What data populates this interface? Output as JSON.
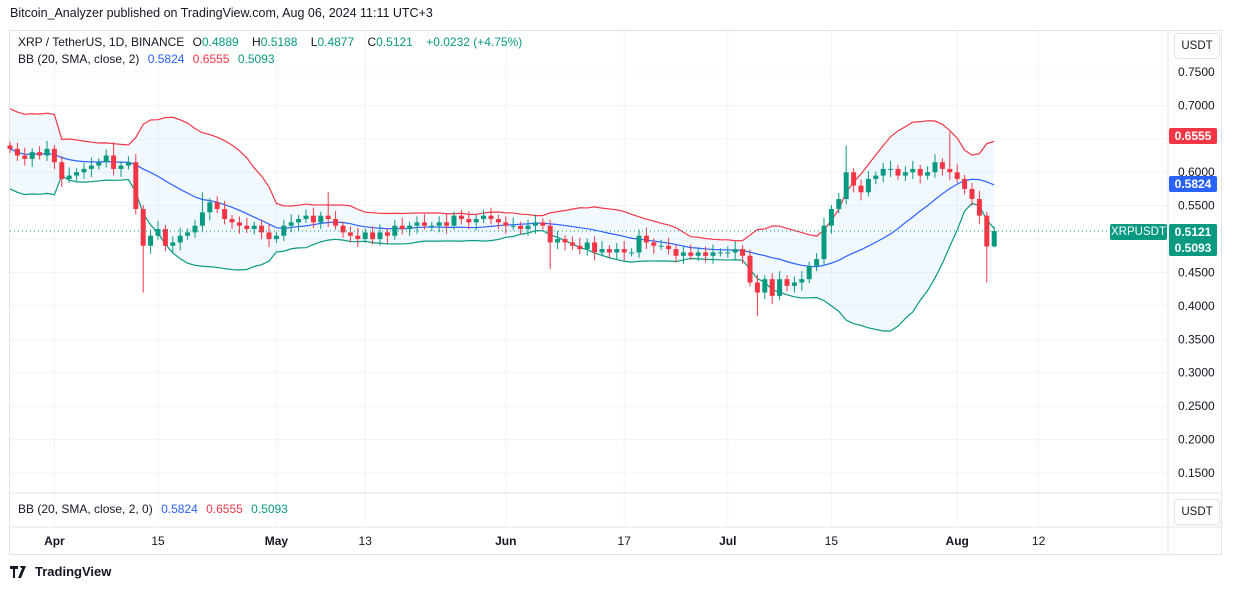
{
  "publish_line": "Bitcoin_Analyzer published on TradingView.com, Aug 06, 2024 11:11 UTC+3",
  "legend": {
    "symbol": "XRP / TetherUS, 1D, BINANCE",
    "o_label": "O",
    "o": "0.4889",
    "h_label": "H",
    "h": "0.5188",
    "l_label": "L",
    "l": "0.4877",
    "c_label": "C",
    "c": "0.5121",
    "change": "+0.0232 (+4.75%)",
    "bb_label": "BB (20, SMA, close, 2)",
    "bb_basis": "0.5824",
    "bb_upper": "0.6555",
    "bb_lower": "0.5093"
  },
  "indicator_pane": {
    "label": "BB (20, SMA, close, 2, 0)",
    "basis": "0.5824",
    "upper": "0.6555",
    "lower": "0.5093"
  },
  "price_axis": {
    "unit": "USDT",
    "ticks": [
      "0.7500",
      "0.7000",
      "0.6000",
      "0.5500",
      "0.4500",
      "0.4000",
      "0.3500",
      "0.3000",
      "0.2500",
      "0.2000",
      "0.1500"
    ]
  },
  "price_tags": {
    "upper": "0.6555",
    "basis": "0.5824",
    "last": "0.5121",
    "lower": "0.5093",
    "symbol": "XRPUSDT"
  },
  "indicator_unit": "USDT",
  "time_axis": {
    "ticks": [
      {
        "label": "Apr",
        "date": "2024-04-01",
        "bold": true
      },
      {
        "label": "15",
        "date": "2024-04-15"
      },
      {
        "label": "May",
        "date": "2024-05-01",
        "bold": true
      },
      {
        "label": "13",
        "date": "2024-05-13"
      },
      {
        "label": "Jun",
        "date": "2024-06-01",
        "bold": true
      },
      {
        "label": "17",
        "date": "2024-06-17"
      },
      {
        "label": "Jul",
        "date": "2024-07-01",
        "bold": true
      },
      {
        "label": "15",
        "date": "2024-07-15"
      },
      {
        "label": "Aug",
        "date": "2024-08-01",
        "bold": true
      },
      {
        "label": "12",
        "date": "2024-08-12"
      }
    ]
  },
  "brand": "TradingView",
  "colors": {
    "up": "#089981",
    "down": "#f23645",
    "basis": "#2962ff",
    "upper": "#f23645",
    "lower": "#089981",
    "band_fill": "#2196f3"
  },
  "chart_data": {
    "type": "candlestick",
    "interval": "1D",
    "first_date": "2024-03-26",
    "ylim": [
      0.12,
      0.78
    ],
    "grid": true,
    "close": [
      0.635,
      0.625,
      0.62,
      0.63,
      0.625,
      0.635,
      0.615,
      0.59,
      0.595,
      0.6,
      0.605,
      0.61,
      0.615,
      0.625,
      0.605,
      0.61,
      0.615,
      0.545,
      0.49,
      0.505,
      0.515,
      0.49,
      0.495,
      0.505,
      0.51,
      0.52,
      0.54,
      0.555,
      0.545,
      0.53,
      0.525,
      0.52,
      0.515,
      0.52,
      0.51,
      0.5,
      0.505,
      0.52,
      0.525,
      0.53,
      0.535,
      0.525,
      0.535,
      0.53,
      0.52,
      0.51,
      0.505,
      0.5,
      0.51,
      0.5,
      0.51,
      0.505,
      0.52,
      0.515,
      0.52,
      0.525,
      0.52,
      0.52,
      0.525,
      0.52,
      0.535,
      0.53,
      0.525,
      0.53,
      0.535,
      0.53,
      0.525,
      0.52,
      0.52,
      0.515,
      0.52,
      0.525,
      0.52,
      0.495,
      0.5,
      0.495,
      0.49,
      0.485,
      0.495,
      0.48,
      0.485,
      0.48,
      0.485,
      0.48,
      0.48,
      0.505,
      0.495,
      0.49,
      0.49,
      0.485,
      0.475,
      0.48,
      0.475,
      0.48,
      0.475,
      0.48,
      0.48,
      0.48,
      0.485,
      0.475,
      0.435,
      0.42,
      0.44,
      0.415,
      0.44,
      0.43,
      0.435,
      0.44,
      0.46,
      0.47,
      0.52,
      0.545,
      0.56,
      0.6,
      0.58,
      0.57,
      0.59,
      0.595,
      0.605,
      0.605,
      0.595,
      0.6,
      0.605,
      0.595,
      0.6,
      0.615,
      0.605,
      0.6,
      0.59,
      0.575,
      0.56,
      0.535,
      0.4889,
      0.5121
    ],
    "last_candle": {
      "open": 0.4889,
      "high": 0.5188,
      "low": 0.4877,
      "close": 0.5121
    },
    "notable_lows": {
      "2024-04-13": 0.42,
      "2024-06-07": 0.455,
      "2024-07-05": 0.385,
      "2024-08-05": 0.435
    },
    "notable_highs": {
      "2024-04-09": 0.645,
      "2024-04-21": 0.57,
      "2024-05-08": 0.57,
      "2024-07-17": 0.64,
      "2024-07-31": 0.66
    },
    "bollinger": {
      "length": 20,
      "stddev": 2,
      "source": "close"
    }
  }
}
